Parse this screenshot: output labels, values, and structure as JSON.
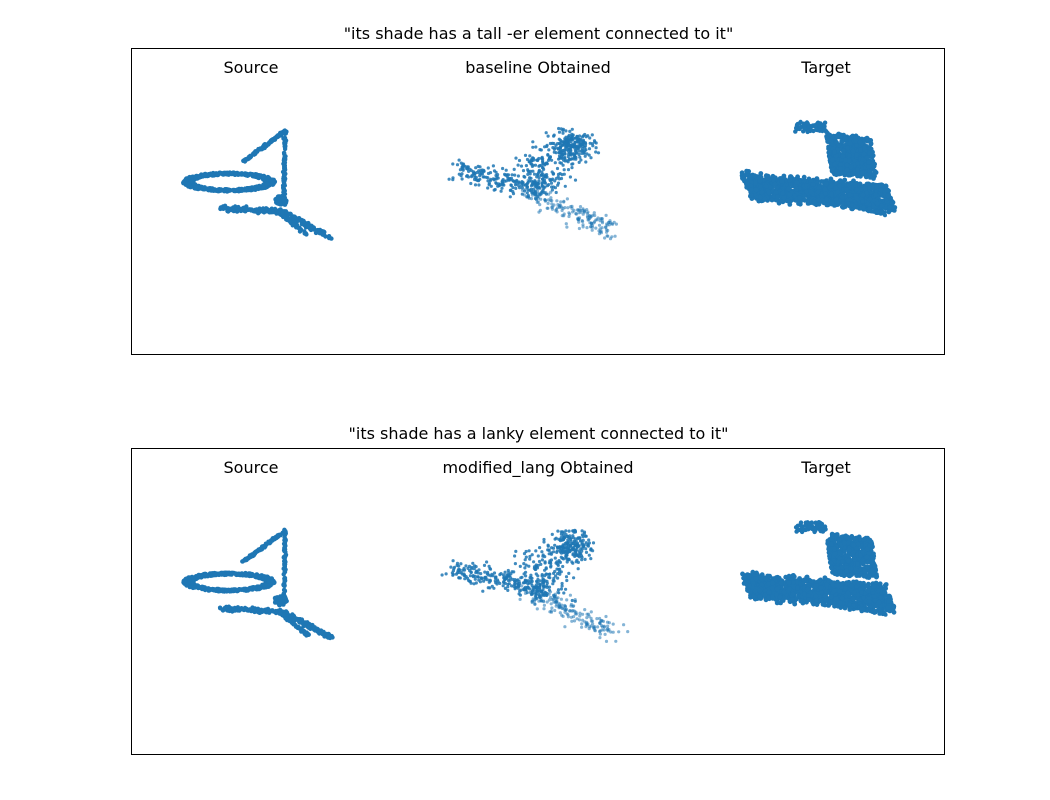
{
  "rows": [
    {
      "title": "\"its shade has a tall -er element connected to it\"",
      "panels": [
        "Source",
        "baseline Obtained",
        "Target"
      ]
    },
    {
      "title": "\"its shade has a lanky element connected to it\"",
      "panels": [
        "Source",
        "modified_lang Obtained",
        "Target"
      ]
    }
  ],
  "chart_data": [
    {
      "type": "scatter",
      "title": "\"its shade has a tall -er element connected to it\"",
      "panels": [
        {
          "title": "Source",
          "shape": "desk lamp (ring shade, angled arm, three-leg base)"
        },
        {
          "title": "baseline Obtained",
          "shape": "diffuse point cloud"
        },
        {
          "title": "Target",
          "shape": "dense slab with raised block"
        }
      ],
      "color": "#1f77b4",
      "axes_visible": false,
      "grid": false
    },
    {
      "type": "scatter",
      "title": "\"its shade has a lanky element connected to it\"",
      "panels": [
        {
          "title": "Source",
          "shape": "desk lamp (ring shade, angled arm, three-leg base)"
        },
        {
          "title": "modified_lang Obtained",
          "shape": "diffuse point cloud"
        },
        {
          "title": "Target",
          "shape": "dense slab with raised block"
        }
      ],
      "color": "#1f77b4",
      "axes_visible": false,
      "grid": false
    }
  ]
}
